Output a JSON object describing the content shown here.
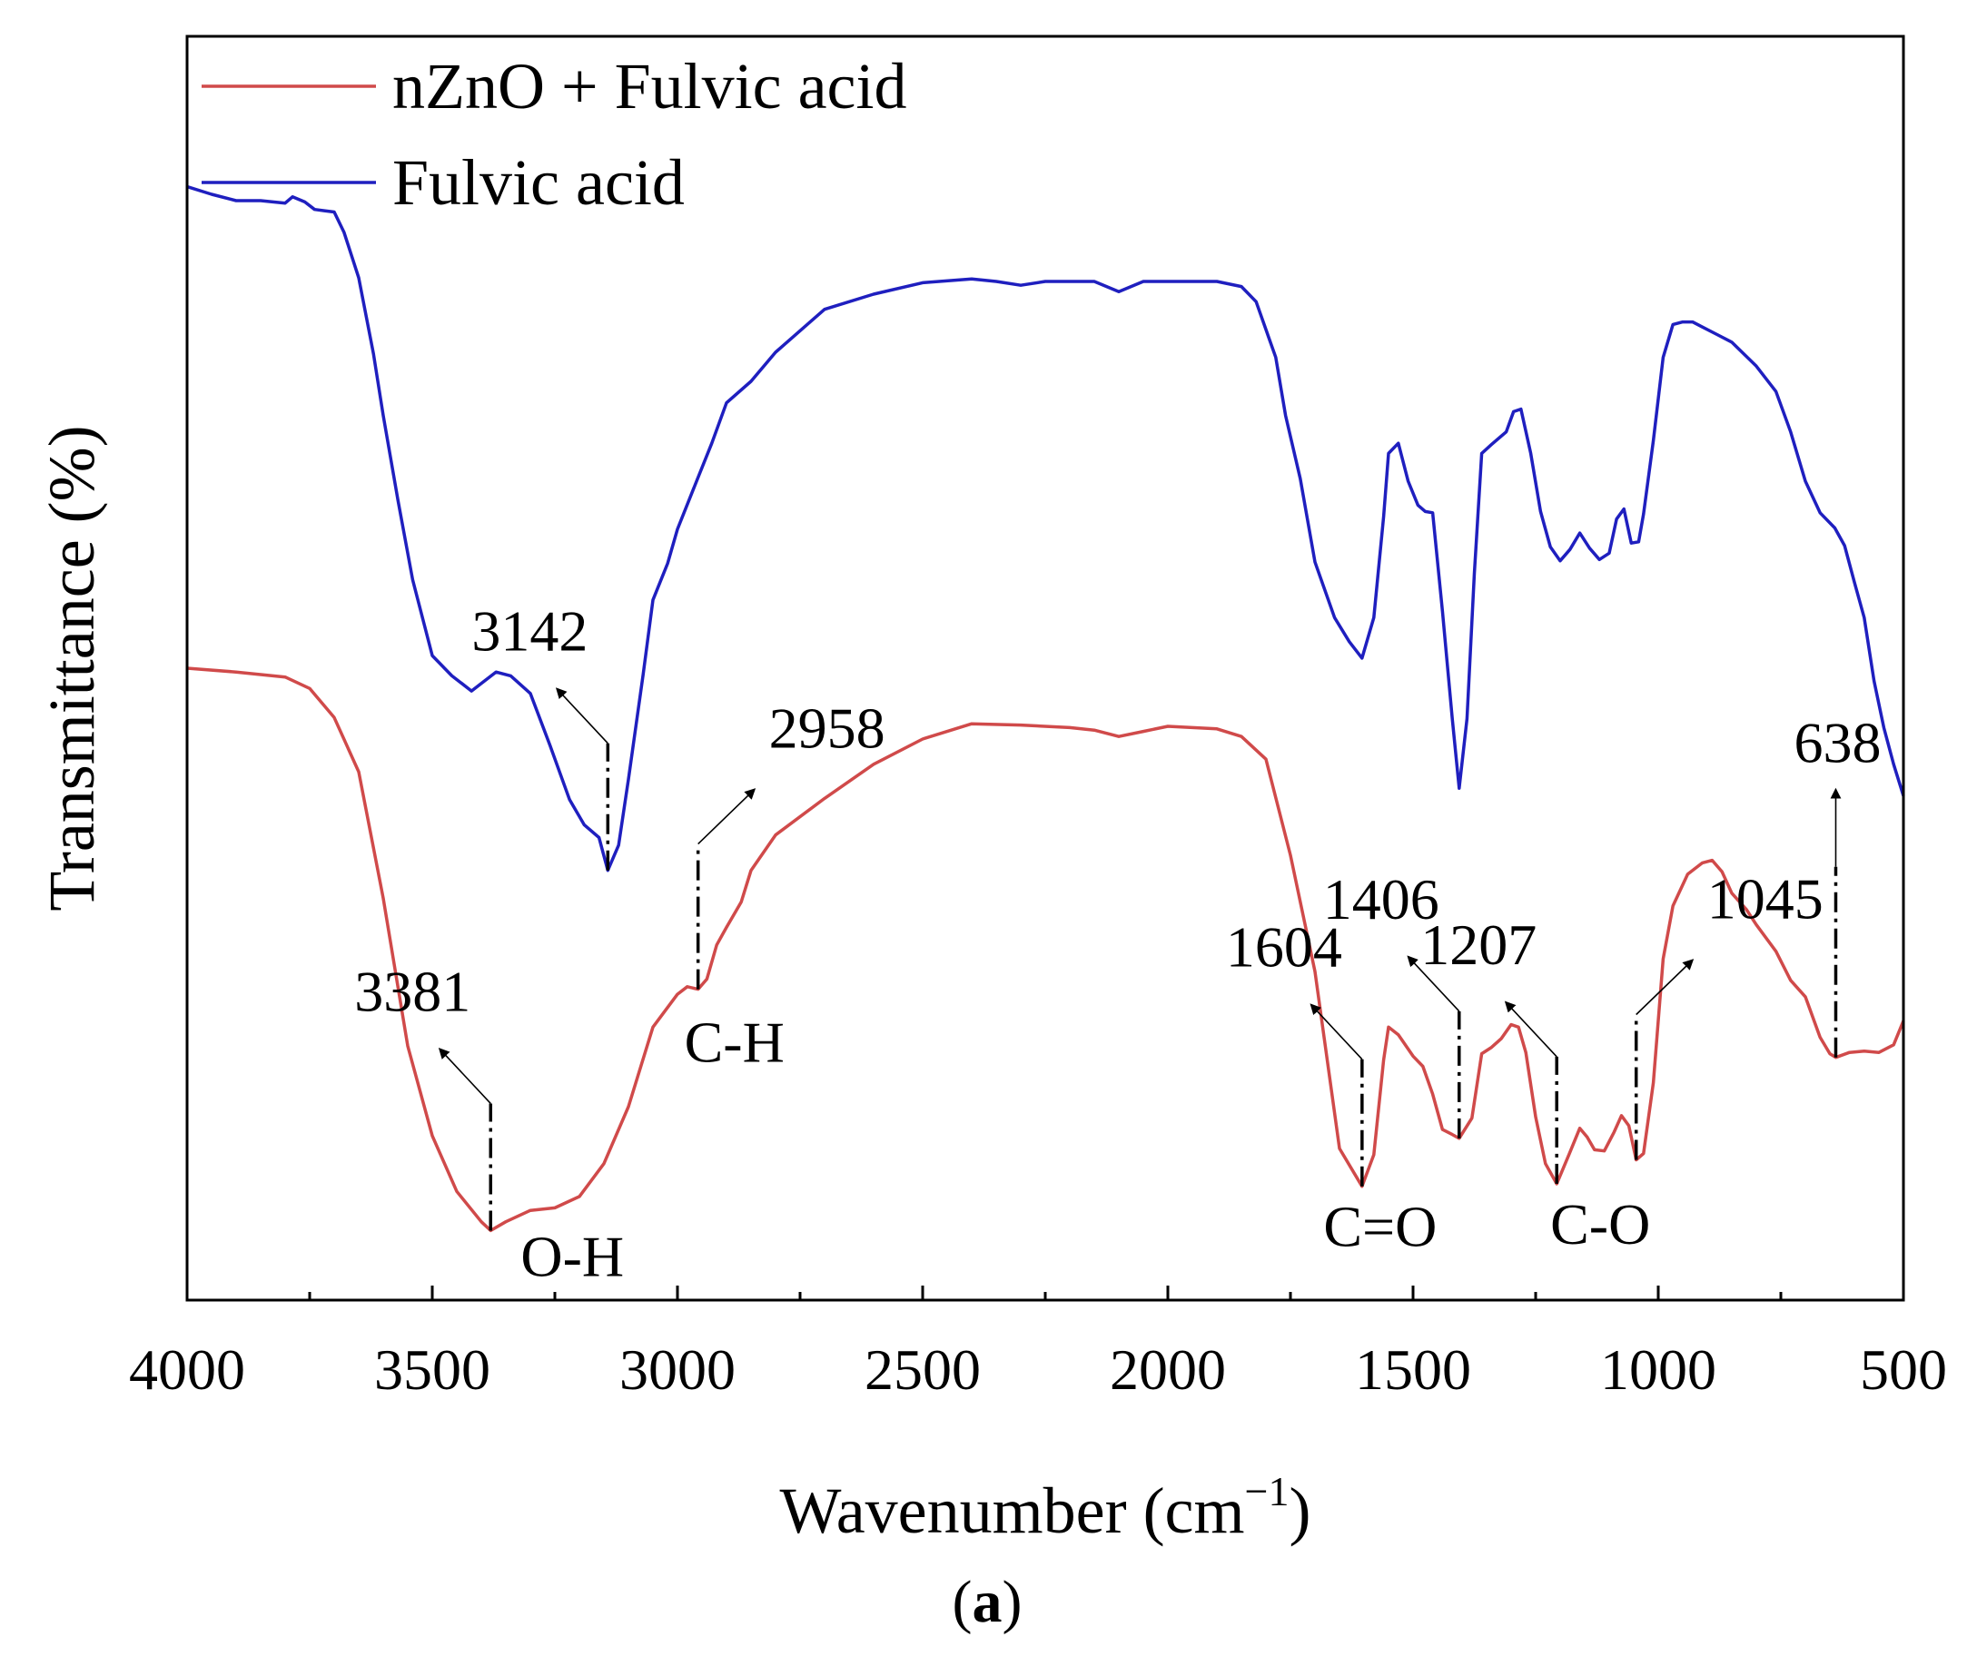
{
  "chart_data": {
    "type": "line",
    "xlabel": "Wavenumber (cm",
    "xlabel_sup": "−1",
    "xlabel_close": ")",
    "ylabel": "Transmittance (%)",
    "caption_open": "(",
    "caption_letter": "a",
    "caption_close": ")",
    "xlim": [
      4000,
      500
    ],
    "ylim": [
      0,
      100
    ],
    "x_ticks": [
      4000,
      3500,
      3000,
      2500,
      2000,
      1500,
      1000,
      500
    ],
    "x_tick_labels": [
      "4000",
      "3500",
      "3000",
      "2500",
      "2000",
      "1500",
      "1000",
      "500"
    ],
    "legend": {
      "position": "top-left",
      "entries": [
        "nZnO + Fulvic acid",
        "Fulvic acid"
      ]
    },
    "series": [
      {
        "name": "nZnO + Fulvic acid",
        "color": "#d04a4a",
        "points": [
          [
            4000,
            50
          ],
          [
            3900,
            49.7
          ],
          [
            3800,
            49.3
          ],
          [
            3750,
            48.4
          ],
          [
            3700,
            46.1
          ],
          [
            3650,
            41.8
          ],
          [
            3600,
            31.8
          ],
          [
            3550,
            20.1
          ],
          [
            3500,
            13.0
          ],
          [
            3450,
            8.6
          ],
          [
            3400,
            6.2
          ],
          [
            3381,
            5.5
          ],
          [
            3350,
            6.2
          ],
          [
            3300,
            7.1
          ],
          [
            3250,
            7.3
          ],
          [
            3200,
            8.2
          ],
          [
            3150,
            10.8
          ],
          [
            3100,
            15.3
          ],
          [
            3050,
            21.6
          ],
          [
            3000,
            24.2
          ],
          [
            2980,
            24.8
          ],
          [
            2958,
            24.6
          ],
          [
            2940,
            25.4
          ],
          [
            2920,
            28.1
          ],
          [
            2900,
            29.5
          ],
          [
            2870,
            31.5
          ],
          [
            2850,
            34.0
          ],
          [
            2800,
            36.8
          ],
          [
            2700,
            39.7
          ],
          [
            2600,
            42.4
          ],
          [
            2500,
            44.4
          ],
          [
            2400,
            45.6
          ],
          [
            2300,
            45.5
          ],
          [
            2200,
            45.3
          ],
          [
            2150,
            45.1
          ],
          [
            2100,
            44.6
          ],
          [
            2050,
            45.0
          ],
          [
            2000,
            45.4
          ],
          [
            1900,
            45.2
          ],
          [
            1850,
            44.6
          ],
          [
            1800,
            42.8
          ],
          [
            1750,
            35.2
          ],
          [
            1700,
            26.0
          ],
          [
            1650,
            12.0
          ],
          [
            1604,
            9.0
          ],
          [
            1580,
            11.5
          ],
          [
            1560,
            19.0
          ],
          [
            1550,
            21.6
          ],
          [
            1530,
            21.0
          ],
          [
            1500,
            19.3
          ],
          [
            1480,
            18.5
          ],
          [
            1460,
            16.3
          ],
          [
            1440,
            13.5
          ],
          [
            1420,
            13.1
          ],
          [
            1406,
            12.8
          ],
          [
            1380,
            14.4
          ],
          [
            1360,
            19.5
          ],
          [
            1340,
            20.0
          ],
          [
            1320,
            20.7
          ],
          [
            1300,
            21.8
          ],
          [
            1285,
            21.6
          ],
          [
            1270,
            19.6
          ],
          [
            1250,
            14.5
          ],
          [
            1230,
            10.8
          ],
          [
            1207,
            9.2
          ],
          [
            1180,
            11.7
          ],
          [
            1160,
            13.6
          ],
          [
            1145,
            12.9
          ],
          [
            1130,
            11.9
          ],
          [
            1110,
            11.8
          ],
          [
            1090,
            13.3
          ],
          [
            1075,
            14.6
          ],
          [
            1060,
            13.8
          ],
          [
            1045,
            11.1
          ],
          [
            1030,
            11.6
          ],
          [
            1010,
            17.2
          ],
          [
            990,
            27.0
          ],
          [
            970,
            31.2
          ],
          [
            940,
            33.7
          ],
          [
            910,
            34.6
          ],
          [
            890,
            34.8
          ],
          [
            870,
            33.9
          ],
          [
            850,
            32.2
          ],
          [
            820,
            30.9
          ],
          [
            800,
            29.7
          ],
          [
            760,
            27.6
          ],
          [
            730,
            25.3
          ],
          [
            700,
            24.0
          ],
          [
            670,
            20.8
          ],
          [
            650,
            19.5
          ],
          [
            638,
            19.2
          ],
          [
            610,
            19.6
          ],
          [
            580,
            19.7
          ],
          [
            550,
            19.6
          ],
          [
            520,
            20.2
          ],
          [
            500,
            22.1
          ]
        ]
      },
      {
        "name": "Fulvic acid",
        "color": "#1f1fbf",
        "points": [
          [
            4000,
            88.1
          ],
          [
            3950,
            87.5
          ],
          [
            3900,
            87.0
          ],
          [
            3850,
            87.0
          ],
          [
            3800,
            86.8
          ],
          [
            3785,
            87.3
          ],
          [
            3760,
            86.9
          ],
          [
            3740,
            86.3
          ],
          [
            3720,
            86.2
          ],
          [
            3700,
            86.1
          ],
          [
            3680,
            84.5
          ],
          [
            3650,
            80.9
          ],
          [
            3620,
            74.9
          ],
          [
            3600,
            70.0
          ],
          [
            3570,
            63.3
          ],
          [
            3540,
            57.0
          ],
          [
            3500,
            51.0
          ],
          [
            3460,
            49.4
          ],
          [
            3440,
            48.8
          ],
          [
            3420,
            48.2
          ],
          [
            3400,
            48.8
          ],
          [
            3370,
            49.7
          ],
          [
            3340,
            49.4
          ],
          [
            3300,
            48.0
          ],
          [
            3260,
            43.9
          ],
          [
            3220,
            39.6
          ],
          [
            3190,
            37.6
          ],
          [
            3160,
            36.6
          ],
          [
            3142,
            34.0
          ],
          [
            3120,
            36.0
          ],
          [
            3100,
            41.2
          ],
          [
            3070,
            49.5
          ],
          [
            3050,
            55.4
          ],
          [
            3020,
            58.3
          ],
          [
            3000,
            61.0
          ],
          [
            2960,
            64.9
          ],
          [
            2930,
            67.8
          ],
          [
            2900,
            71.0
          ],
          [
            2850,
            72.7
          ],
          [
            2800,
            75.0
          ],
          [
            2700,
            78.4
          ],
          [
            2600,
            79.6
          ],
          [
            2500,
            80.5
          ],
          [
            2400,
            80.8
          ],
          [
            2350,
            80.6
          ],
          [
            2300,
            80.3
          ],
          [
            2250,
            80.6
          ],
          [
            2200,
            80.6
          ],
          [
            2150,
            80.6
          ],
          [
            2100,
            79.8
          ],
          [
            2050,
            80.6
          ],
          [
            2000,
            80.6
          ],
          [
            1900,
            80.6
          ],
          [
            1850,
            80.2
          ],
          [
            1820,
            79.0
          ],
          [
            1780,
            74.6
          ],
          [
            1760,
            70.0
          ],
          [
            1730,
            65.0
          ],
          [
            1700,
            58.4
          ],
          [
            1660,
            54.0
          ],
          [
            1630,
            52.1
          ],
          [
            1604,
            50.8
          ],
          [
            1580,
            54.0
          ],
          [
            1560,
            62.0
          ],
          [
            1550,
            67.0
          ],
          [
            1530,
            67.8
          ],
          [
            1510,
            64.8
          ],
          [
            1490,
            62.9
          ],
          [
            1475,
            62.4
          ],
          [
            1460,
            62.3
          ],
          [
            1440,
            54.5
          ],
          [
            1420,
            46.0
          ],
          [
            1406,
            40.5
          ],
          [
            1390,
            46.0
          ],
          [
            1375,
            57.5
          ],
          [
            1360,
            67.0
          ],
          [
            1340,
            67.7
          ],
          [
            1310,
            68.7
          ],
          [
            1295,
            70.3
          ],
          [
            1280,
            70.5
          ],
          [
            1260,
            67.0
          ],
          [
            1240,
            62.4
          ],
          [
            1220,
            59.6
          ],
          [
            1200,
            58.5
          ],
          [
            1180,
            59.4
          ],
          [
            1160,
            60.7
          ],
          [
            1140,
            59.5
          ],
          [
            1120,
            58.6
          ],
          [
            1100,
            59.1
          ],
          [
            1085,
            61.8
          ],
          [
            1070,
            62.6
          ],
          [
            1055,
            59.9
          ],
          [
            1040,
            60.0
          ],
          [
            1030,
            62.2
          ],
          [
            1010,
            68.0
          ],
          [
            990,
            74.6
          ],
          [
            970,
            77.2
          ],
          [
            950,
            77.4
          ],
          [
            930,
            77.4
          ],
          [
            910,
            77.0
          ],
          [
            880,
            76.4
          ],
          [
            850,
            75.8
          ],
          [
            800,
            73.9
          ],
          [
            760,
            71.9
          ],
          [
            730,
            68.7
          ],
          [
            700,
            64.8
          ],
          [
            670,
            62.3
          ],
          [
            640,
            61.1
          ],
          [
            620,
            59.7
          ],
          [
            600,
            56.8
          ],
          [
            580,
            54.0
          ],
          [
            560,
            49.0
          ],
          [
            540,
            45.3
          ],
          [
            520,
            42.4
          ],
          [
            500,
            39.9
          ]
        ]
      }
    ],
    "annotations": [
      {
        "label": "3142",
        "series": "Fulvic acid",
        "x": 3142,
        "dir": "left"
      },
      {
        "label": "3381",
        "series": "nZnO + Fulvic acid",
        "x": 3381,
        "dir": "left",
        "group": "O-H"
      },
      {
        "label": "2958",
        "series": "nZnO + Fulvic acid",
        "x": 2958,
        "dir": "right",
        "group": "C-H"
      },
      {
        "label": "1604",
        "series": "nZnO + Fulvic acid",
        "x": 1604,
        "dir": "left",
        "group": "C=O"
      },
      {
        "label": "1406",
        "series": "nZnO + Fulvic acid",
        "x": 1406,
        "dir": "left"
      },
      {
        "label": "1207",
        "series": "nZnO + Fulvic acid",
        "x": 1207,
        "dir": "left",
        "group": "C-O"
      },
      {
        "label": "1045",
        "series": "nZnO + Fulvic acid",
        "x": 1045,
        "dir": "right"
      },
      {
        "label": "638",
        "series": "nZnO + Fulvic acid",
        "x": 638,
        "dir": "up"
      }
    ],
    "group_labels": [
      "O-H",
      "C-H",
      "C=O",
      "C-O"
    ]
  }
}
